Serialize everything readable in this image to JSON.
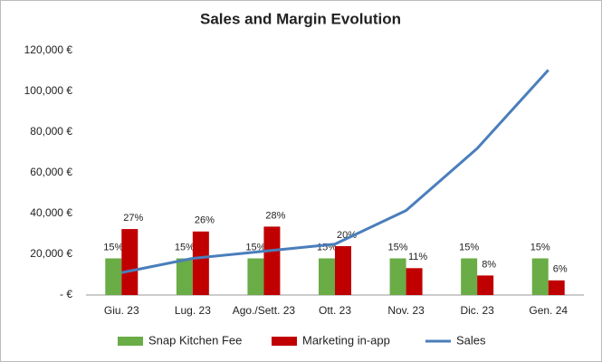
{
  "chart_data": {
    "type": "combo",
    "title": "Sales and Margin Evolution",
    "categories": [
      "Giu. 23",
      "Lug. 23",
      "Ago./Sett. 23",
      "Ott. 23",
      "Nov. 23",
      "Dic. 23",
      "Gen. 24"
    ],
    "series": [
      {
        "name": "Snap Kitchen Fee",
        "type": "bar",
        "color": "#6aac46",
        "axis": "y2",
        "values": [
          15,
          15,
          15,
          15,
          15,
          15,
          15
        ],
        "value_labels": [
          "15%",
          "15%",
          "15%",
          "15%",
          "15%",
          "15%",
          "15%"
        ]
      },
      {
        "name": "Marketing in-app",
        "type": "bar",
        "color": "#c00000",
        "axis": "y2",
        "values": [
          27,
          26,
          28,
          20,
          11,
          8,
          6
        ],
        "value_labels": [
          "27%",
          "26%",
          "28%",
          "20%",
          "11%",
          "8%",
          "6%"
        ]
      },
      {
        "name": "Sales",
        "type": "line",
        "color": "#4a7ebb",
        "values": [
          11000,
          18000,
          21500,
          25000,
          41500,
          72000,
          110500
        ]
      }
    ],
    "ylim": [
      0,
      120000
    ],
    "yticks": [
      {
        "value": 0,
        "label": "-   €"
      },
      {
        "value": 20000,
        "label": "20,000 €"
      },
      {
        "value": 40000,
        "label": "40,000 €"
      },
      {
        "value": 60000,
        "label": "60,000 €"
      },
      {
        "value": 80000,
        "label": "80,000 €"
      },
      {
        "value": 100000,
        "label": "100,000 €"
      },
      {
        "value": 120000,
        "label": "120,000 €"
      }
    ],
    "y2lim": [
      0,
      100
    ],
    "grid": false
  }
}
